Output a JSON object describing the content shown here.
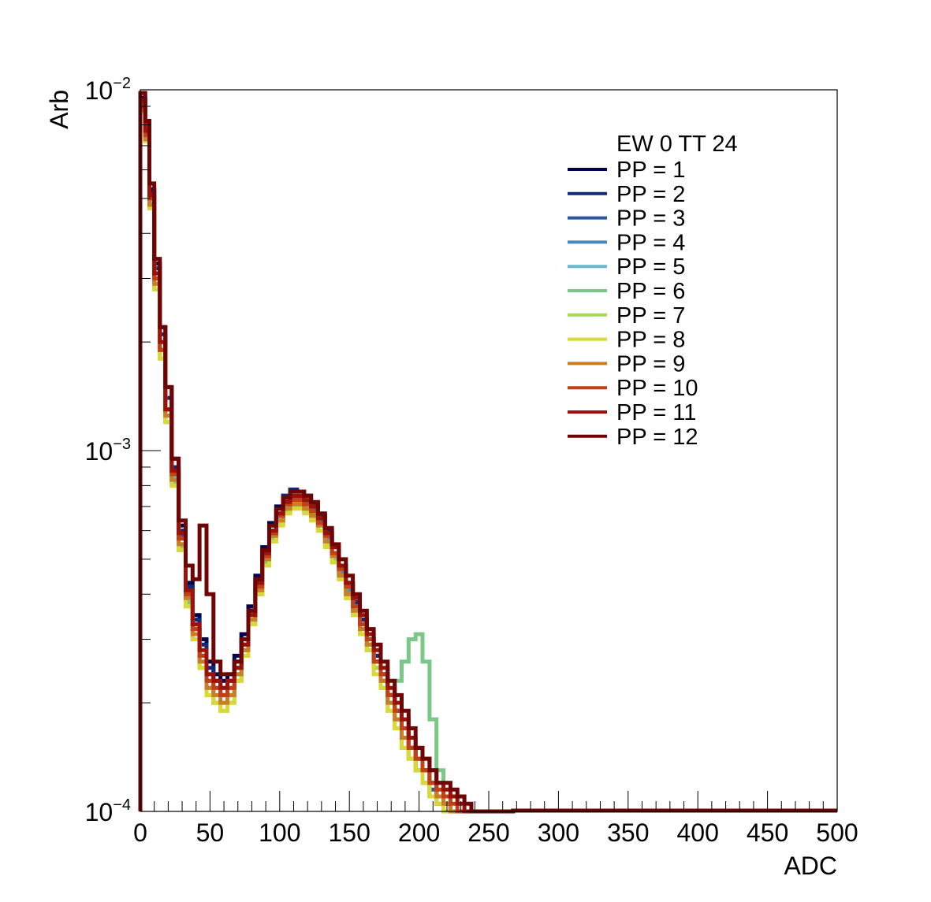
{
  "chart_data": {
    "type": "line",
    "title": "",
    "xlabel": "ADC",
    "ylabel": "Arb",
    "xlim": [
      0,
      500
    ],
    "ylim": [
      0.0001,
      0.01
    ],
    "y_scale": "log",
    "grid": false,
    "legend_position": "top-right",
    "legend_header": "EW 0 TT 24",
    "x_ticks": [
      "0",
      "50",
      "100",
      "150",
      "200",
      "250",
      "300",
      "350",
      "400",
      "450",
      "500"
    ],
    "y_ticks": [
      {
        "base": "10",
        "exp": "−4",
        "value": 0.0001
      },
      {
        "base": "10",
        "exp": "−3",
        "value": 0.001
      },
      {
        "base": "10",
        "exp": "−2",
        "value": 0.01
      }
    ],
    "x": [
      2,
      5,
      8,
      12,
      16,
      20,
      25,
      30,
      35,
      40,
      45,
      50,
      55,
      60,
      65,
      70,
      75,
      80,
      85,
      90,
      95,
      100,
      105,
      110,
      115,
      120,
      125,
      130,
      135,
      140,
      145,
      150,
      155,
      160,
      165,
      170,
      175,
      180,
      185,
      190,
      195,
      200,
      205,
      210,
      215,
      220,
      225,
      230,
      235,
      240,
      245,
      250,
      255,
      260,
      265
    ],
    "series": [
      {
        "name": "PP = 1",
        "color": "#000050",
        "values": [
          0.0095,
          0.008,
          0.0053,
          0.0033,
          0.0022,
          0.0015,
          0.00095,
          0.00062,
          0.00043,
          0.00035,
          0.0003,
          0.00026,
          0.00024,
          0.00023,
          0.00024,
          0.00027,
          0.00031,
          0.00037,
          0.00045,
          0.00054,
          0.00063,
          0.0007,
          0.00075,
          0.00077,
          0.00077,
          0.00075,
          0.00071,
          0.00066,
          0.0006,
          0.00054,
          0.00048,
          0.00043,
          0.00038,
          0.00034,
          0.0003,
          0.00027,
          0.00024,
          0.00021,
          0.00019,
          0.00017,
          0.00015,
          0.00014,
          0.00013,
          0.00012,
          0.00011,
          0.000105,
          0.0001,
          0.0001,
          0.0001,
          0.0001,
          0.0001,
          0.0001,
          0.0001,
          0.0001,
          0.0001
        ]
      },
      {
        "name": "PP = 2",
        "color": "#102a7a",
        "values": [
          0.0094,
          0.0078,
          0.0052,
          0.0032,
          0.0021,
          0.0014,
          0.0009,
          0.0006,
          0.00042,
          0.00034,
          0.00029,
          0.00025,
          0.00023,
          0.00022,
          0.00023,
          0.00026,
          0.0003,
          0.00036,
          0.00044,
          0.00053,
          0.00062,
          0.00069,
          0.00075,
          0.00078,
          0.00077,
          0.00075,
          0.00071,
          0.00066,
          0.0006,
          0.00054,
          0.00048,
          0.00043,
          0.00038,
          0.00034,
          0.0003,
          0.00027,
          0.00024,
          0.00021,
          0.00019,
          0.00017,
          0.00015,
          0.00014,
          0.00013,
          0.00012,
          0.00011,
          0.000105,
          0.0001,
          0.0001,
          0.0001,
          0.0001,
          0.0001,
          0.0001,
          0.0001,
          0.0001,
          0.0001
        ]
      },
      {
        "name": "PP = 3",
        "color": "#2a56a0",
        "values": [
          0.0092,
          0.0077,
          0.0051,
          0.0031,
          0.002,
          0.0013,
          0.00088,
          0.00058,
          0.0004,
          0.00032,
          0.00027,
          0.00024,
          0.00022,
          0.00021,
          0.00022,
          0.00025,
          0.00029,
          0.00035,
          0.00043,
          0.00052,
          0.0006,
          0.00067,
          0.00072,
          0.00074,
          0.00074,
          0.00072,
          0.00069,
          0.00064,
          0.00058,
          0.00052,
          0.00047,
          0.00042,
          0.00037,
          0.00033,
          0.00029,
          0.00026,
          0.00023,
          0.00021,
          0.00018,
          0.00016,
          0.00015,
          0.00013,
          0.00012,
          0.000115,
          0.00011,
          0.0001,
          0.0001,
          0.0001,
          0.0001,
          0.0001,
          0.0001,
          0.0001,
          0.0001,
          0.0001,
          0.0001
        ]
      },
      {
        "name": "PP = 4",
        "color": "#4a86c0",
        "values": [
          0.009,
          0.0075,
          0.005,
          0.003,
          0.0019,
          0.0013,
          0.00086,
          0.00057,
          0.0004,
          0.00032,
          0.00027,
          0.00023,
          0.00021,
          0.00021,
          0.00022,
          0.00024,
          0.00028,
          0.00034,
          0.00042,
          0.00051,
          0.00059,
          0.00066,
          0.00071,
          0.00073,
          0.00073,
          0.00071,
          0.00068,
          0.00063,
          0.00057,
          0.00052,
          0.00046,
          0.00041,
          0.00037,
          0.00033,
          0.00029,
          0.00026,
          0.00023,
          0.0002,
          0.00018,
          0.00016,
          0.00015,
          0.00013,
          0.00012,
          0.00011,
          0.000105,
          0.0001,
          0.0001,
          0.0001,
          0.0001,
          0.0001,
          0.0001,
          0.0001,
          0.0001,
          0.0001,
          0.0001
        ]
      },
      {
        "name": "PP = 5",
        "color": "#68b8d0",
        "values": [
          0.0089,
          0.0074,
          0.0049,
          0.0029,
          0.0019,
          0.00125,
          0.00084,
          0.00055,
          0.00039,
          0.00031,
          0.00026,
          0.00022,
          0.0002,
          0.0002,
          0.00021,
          0.00024,
          0.00028,
          0.00034,
          0.00041,
          0.0005,
          0.00058,
          0.00065,
          0.0007,
          0.00072,
          0.00072,
          0.0007,
          0.00067,
          0.00062,
          0.00056,
          0.00051,
          0.00045,
          0.0004,
          0.00036,
          0.00032,
          0.00029,
          0.00025,
          0.00022,
          0.0002,
          0.00018,
          0.00016,
          0.00014,
          0.00013,
          0.00012,
          0.00011,
          0.000105,
          0.0001,
          0.0001,
          0.0001,
          0.0001,
          0.0001,
          0.0001,
          0.0001,
          0.0001,
          0.0001,
          0.0001
        ]
      },
      {
        "name": "PP = 6",
        "color": "#7ac888",
        "values": [
          0.0088,
          0.0073,
          0.0048,
          0.0029,
          0.0018,
          0.0012,
          0.00082,
          0.00054,
          0.00038,
          0.0003,
          0.00025,
          0.00022,
          0.0002,
          0.0002,
          0.00021,
          0.00023,
          0.00027,
          0.00033,
          0.0004,
          0.00049,
          0.00057,
          0.00063,
          0.00068,
          0.0007,
          0.0007,
          0.00068,
          0.00065,
          0.0006,
          0.00055,
          0.0005,
          0.00045,
          0.0004,
          0.00036,
          0.00032,
          0.00028,
          0.00025,
          0.00023,
          0.00022,
          0.00023,
          0.00026,
          0.0003,
          0.00031,
          0.00026,
          0.00018,
          0.00013,
          0.000105,
          0.0001,
          0.0001,
          0.0001,
          0.0001,
          0.0001,
          0.0001,
          0.0001,
          0.0001,
          0.0001
        ]
      },
      {
        "name": "PP = 7",
        "color": "#a8d858",
        "values": [
          0.0087,
          0.0072,
          0.0047,
          0.0028,
          0.0018,
          0.0012,
          0.0008,
          0.00053,
          0.00037,
          0.0003,
          0.00025,
          0.00021,
          0.0002,
          0.00019,
          0.0002,
          0.00023,
          0.00027,
          0.00033,
          0.0004,
          0.00048,
          0.00056,
          0.00063,
          0.00067,
          0.0007,
          0.0007,
          0.00068,
          0.00065,
          0.0006,
          0.00055,
          0.00049,
          0.00044,
          0.00039,
          0.00035,
          0.00031,
          0.00028,
          0.00025,
          0.00022,
          0.00019,
          0.00017,
          0.00015,
          0.00014,
          0.00013,
          0.00012,
          0.00011,
          0.000105,
          0.0001,
          0.0001,
          0.0001,
          0.0001,
          0.0001,
          0.0001,
          0.0001,
          0.0001,
          0.0001,
          0.0001
        ]
      },
      {
        "name": "PP = 8",
        "color": "#d8d838",
        "values": [
          0.0087,
          0.0072,
          0.0047,
          0.0028,
          0.0018,
          0.0012,
          0.0008,
          0.00053,
          0.00037,
          0.0003,
          0.00025,
          0.00021,
          0.0002,
          0.00019,
          0.0002,
          0.00023,
          0.00027,
          0.00033,
          0.0004,
          0.00048,
          0.00056,
          0.00062,
          0.00067,
          0.00069,
          0.00069,
          0.00067,
          0.00064,
          0.0006,
          0.00054,
          0.00049,
          0.00044,
          0.00039,
          0.00035,
          0.00031,
          0.00028,
          0.00024,
          0.00022,
          0.00019,
          0.00017,
          0.00015,
          0.00014,
          0.00013,
          0.00012,
          0.00011,
          0.000105,
          0.0001,
          0.0001,
          0.0001,
          0.0001,
          0.0001,
          0.0001,
          0.0001,
          0.0001,
          0.0001,
          0.0001
        ]
      },
      {
        "name": "PP = 9",
        "color": "#c87e28",
        "values": [
          0.0088,
          0.0073,
          0.0048,
          0.0029,
          0.0019,
          0.00125,
          0.00083,
          0.00055,
          0.00039,
          0.00031,
          0.00026,
          0.00022,
          0.00021,
          0.0002,
          0.00021,
          0.00024,
          0.00028,
          0.00034,
          0.00041,
          0.0005,
          0.00058,
          0.00064,
          0.00069,
          0.00071,
          0.00071,
          0.00069,
          0.00066,
          0.00062,
          0.00056,
          0.00051,
          0.00045,
          0.0004,
          0.00036,
          0.00032,
          0.00029,
          0.00026,
          0.00023,
          0.0002,
          0.00018,
          0.00016,
          0.00015,
          0.00014,
          0.00013,
          0.00012,
          0.00011,
          0.000105,
          0.0001,
          0.0001,
          0.0001,
          0.0001,
          0.0001,
          0.0001,
          0.0001,
          0.0001,
          0.0001
        ]
      },
      {
        "name": "PP = 10",
        "color": "#c04018",
        "values": [
          0.009,
          0.0075,
          0.005,
          0.003,
          0.0019,
          0.0013,
          0.00086,
          0.00057,
          0.0004,
          0.00032,
          0.00027,
          0.00023,
          0.00022,
          0.00021,
          0.00022,
          0.00025,
          0.00029,
          0.00035,
          0.00042,
          0.00051,
          0.00059,
          0.00066,
          0.00071,
          0.00073,
          0.00073,
          0.00071,
          0.00068,
          0.00063,
          0.00058,
          0.00052,
          0.00047,
          0.00042,
          0.00037,
          0.00033,
          0.0003,
          0.00026,
          0.00024,
          0.00021,
          0.00019,
          0.00017,
          0.00015,
          0.00014,
          0.00013,
          0.00012,
          0.000115,
          0.00011,
          0.000105,
          0.0001,
          0.0001,
          0.0001,
          0.0001,
          0.0001,
          0.0001,
          0.0001,
          0.0001
        ]
      },
      {
        "name": "PP = 11",
        "color": "#9a1208",
        "values": [
          0.0093,
          0.0077,
          0.0051,
          0.0031,
          0.002,
          0.0013,
          0.00088,
          0.00059,
          0.00041,
          0.00033,
          0.00028,
          0.00024,
          0.00023,
          0.00022,
          0.00023,
          0.00025,
          0.00029,
          0.00035,
          0.00043,
          0.00052,
          0.0006,
          0.00067,
          0.00072,
          0.00075,
          0.00075,
          0.00073,
          0.0007,
          0.00065,
          0.00059,
          0.00054,
          0.00048,
          0.00043,
          0.00039,
          0.00035,
          0.00031,
          0.00028,
          0.00025,
          0.00022,
          0.0002,
          0.00018,
          0.00016,
          0.00015,
          0.00014,
          0.00013,
          0.00012,
          0.000115,
          0.00011,
          0.000105,
          0.0001,
          0.0001,
          0.0001,
          0.0001,
          0.0001,
          0.0001,
          0.0001
        ]
      },
      {
        "name": "PP = 12",
        "color": "#6e0404",
        "values": [
          0.0098,
          0.0082,
          0.0055,
          0.0034,
          0.0022,
          0.0015,
          0.00095,
          0.00064,
          0.00048,
          0.00044,
          0.00062,
          0.0004,
          0.00026,
          0.00024,
          0.00024,
          0.00026,
          0.0003,
          0.00036,
          0.00044,
          0.00053,
          0.00062,
          0.00069,
          0.00074,
          0.00077,
          0.00077,
          0.00075,
          0.00072,
          0.00067,
          0.00061,
          0.00055,
          0.0005,
          0.00045,
          0.0004,
          0.00036,
          0.00032,
          0.00029,
          0.00026,
          0.00023,
          0.00021,
          0.00019,
          0.00017,
          0.00015,
          0.00014,
          0.00013,
          0.00012,
          0.00012,
          0.000115,
          0.00011,
          0.000105,
          0.0001,
          0.0001,
          0.0001,
          0.0001,
          0.0001,
          0.0001
        ]
      }
    ]
  }
}
